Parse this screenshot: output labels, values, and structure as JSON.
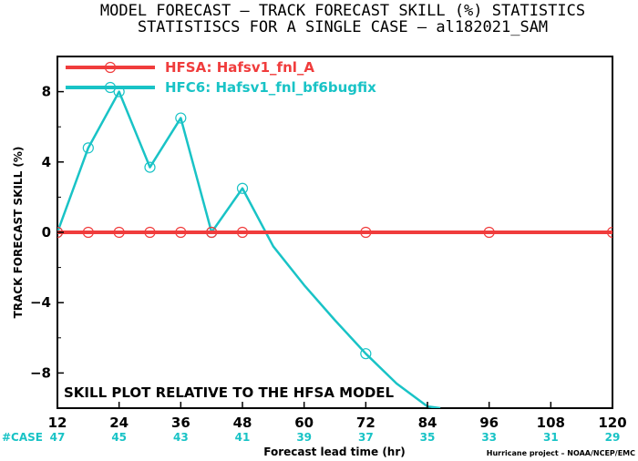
{
  "chart_data": {
    "type": "line",
    "title": "MODEL FORECAST – TRACK FORECAST SKILL (%) STATISTICS",
    "subtitle": "STATISTISCS FOR A SINGLE CASE – al182021_SAM",
    "xlabel": "Forecast lead time (hr)",
    "ylabel": "TRACK FORECAST SKILL (%)",
    "xlim": [
      12,
      120
    ],
    "ylim": [
      -10,
      10
    ],
    "x_ticks": [
      12,
      24,
      36,
      48,
      60,
      72,
      84,
      96,
      108,
      120
    ],
    "y_ticks": [
      -8,
      -4,
      0,
      4,
      8
    ],
    "y_tick_labels": [
      "−8",
      "−4",
      "0",
      "4",
      "8"
    ],
    "annotation": "SKILL PLOT RELATIVE TO THE HFSA MODEL",
    "case_counts": {
      "label": "#CASE",
      "values": [
        47,
        45,
        43,
        41,
        39,
        37,
        35,
        33,
        31,
        29
      ]
    },
    "grid": false,
    "legend_position": "top-left",
    "series": [
      {
        "name": "HFSA: Hafsv1_fnl_A",
        "color": "#f03c3c",
        "line_width": 4,
        "x": [
          12,
          18,
          24,
          30,
          36,
          42,
          48,
          72,
          96,
          120
        ],
        "y": [
          0,
          0,
          0,
          0,
          0,
          0,
          0,
          0,
          0,
          0
        ],
        "marker_x": [
          12,
          18,
          24,
          30,
          36,
          42,
          48,
          72,
          96,
          120
        ]
      },
      {
        "name": "HFC6: Hafsv1_fnl_bf6bugfix",
        "color": "#19c3c6",
        "line_width": 2.5,
        "x": [
          12,
          18,
          24,
          30,
          36,
          42,
          48,
          54,
          60,
          66,
          72,
          78,
          84,
          86.5
        ],
        "y": [
          0,
          4.8,
          8.0,
          3.7,
          6.5,
          0,
          2.5,
          -0.8,
          -3.0,
          -5.0,
          -6.9,
          -8.6,
          -9.9,
          -10.0
        ],
        "marker_x": [
          12,
          18,
          24,
          30,
          36,
          42,
          48,
          72
        ]
      }
    ]
  },
  "footer": {
    "credit": "Hurricane project – NOAA/NCEP/EMC"
  }
}
